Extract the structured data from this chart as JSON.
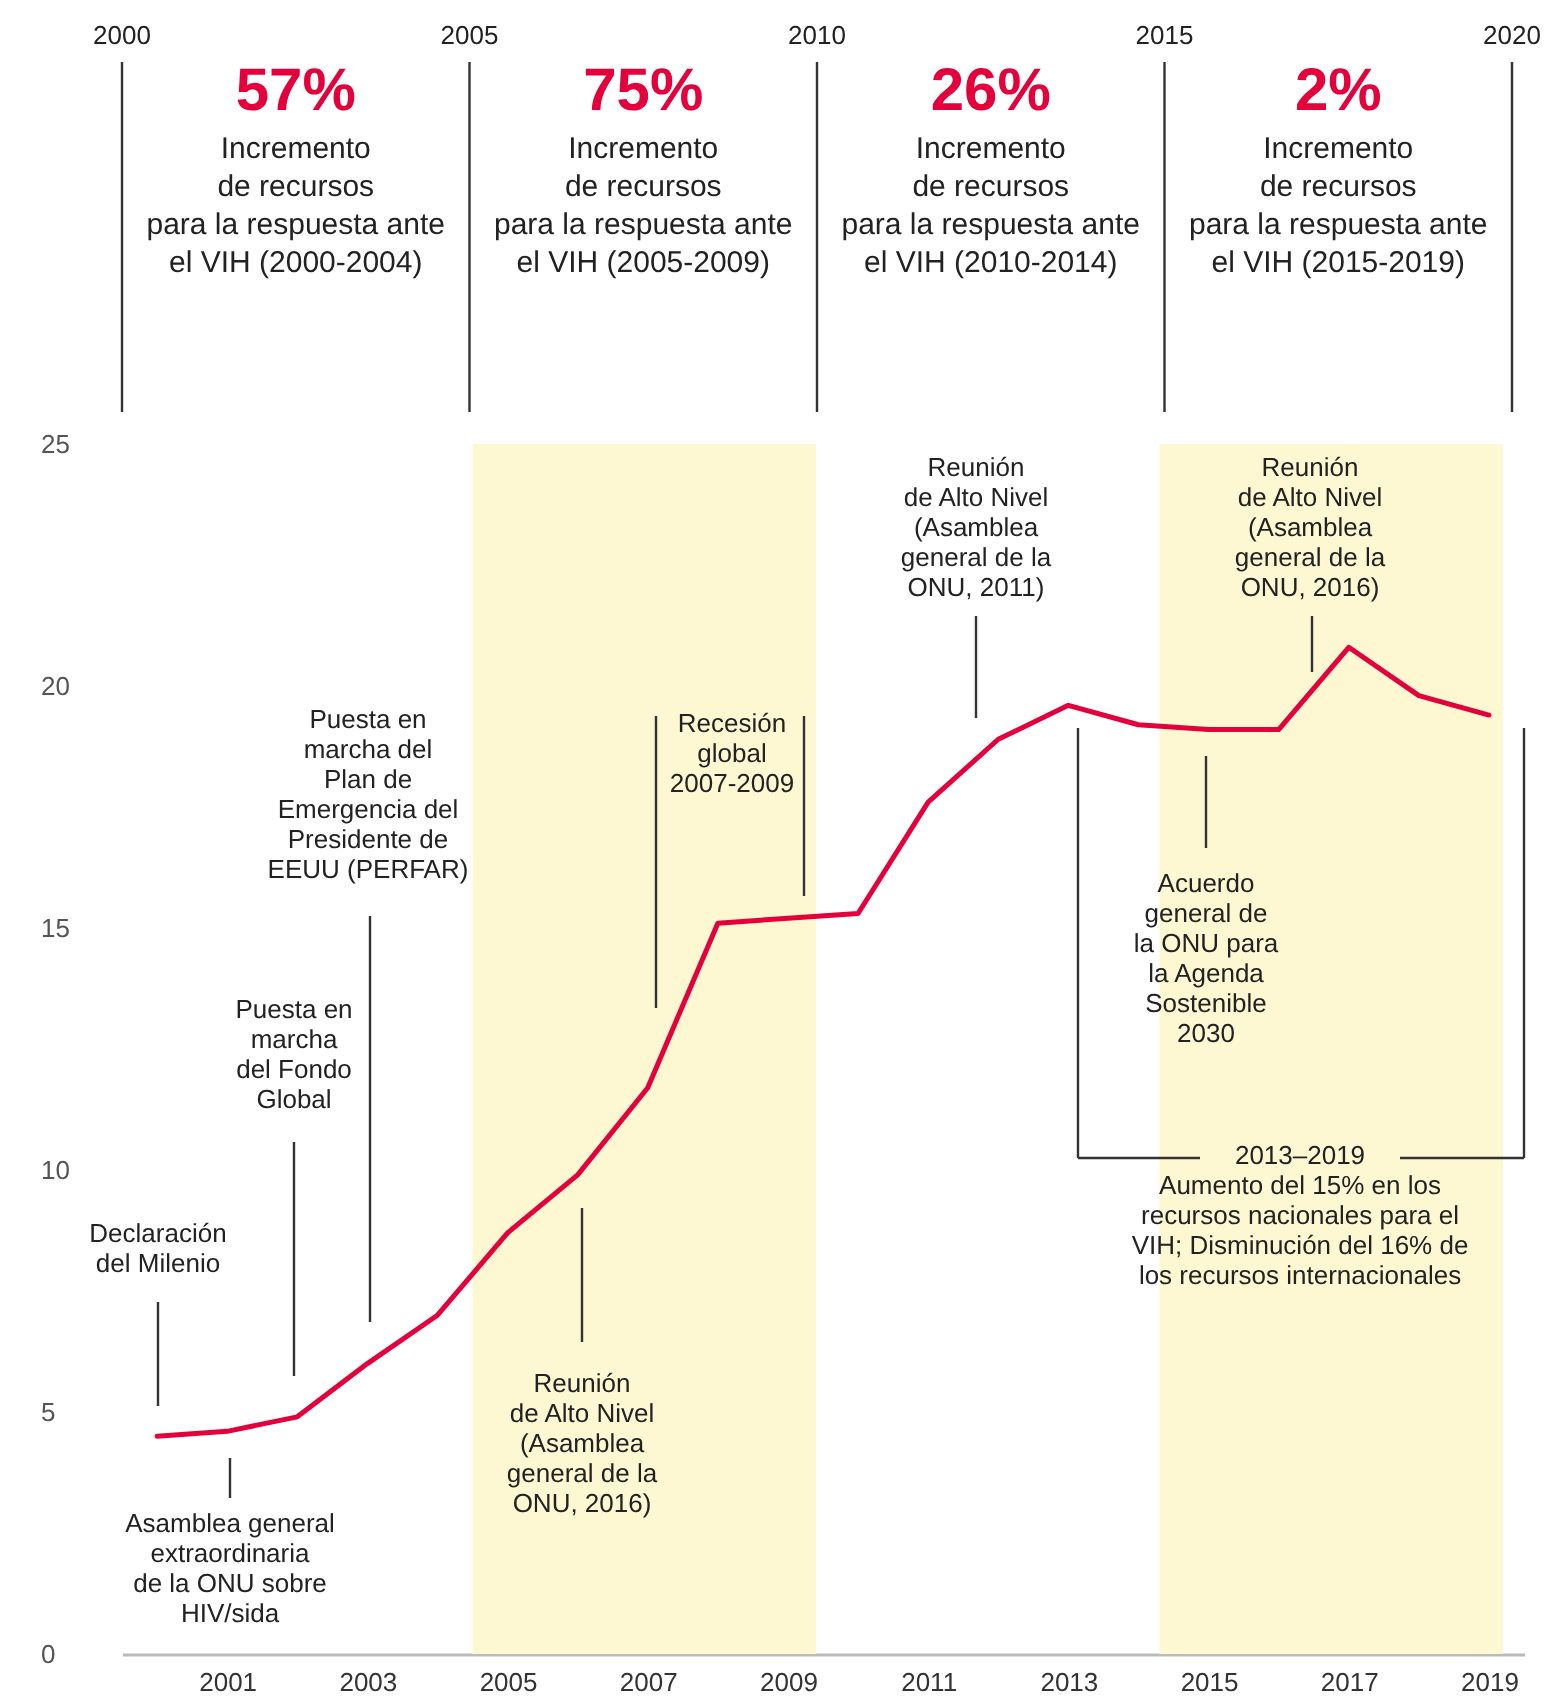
{
  "chart_data": {
    "type": "line",
    "x": [
      2000,
      2001,
      2002,
      2003,
      2004,
      2005,
      2006,
      2007,
      2008,
      2009,
      2010,
      2011,
      2012,
      2013,
      2014,
      2015,
      2016,
      2017,
      2018,
      2019
    ],
    "values": [
      4.5,
      4.6,
      4.9,
      6.0,
      7.0,
      8.7,
      9.9,
      11.7,
      15.1,
      15.2,
      15.3,
      17.6,
      18.9,
      19.6,
      19.2,
      19.1,
      19.1,
      20.8,
      19.8,
      19.4
    ],
    "color": "#e4003b",
    "marker": "none",
    "line_style": "solid",
    "grid": false,
    "xlim": [
      1999.5,
      2019.5
    ],
    "xticks": [
      2001,
      2003,
      2005,
      2007,
      2009,
      2011,
      2013,
      2015,
      2017,
      2019
    ],
    "ylim": [
      0,
      25
    ],
    "yticks": [
      0,
      5,
      10,
      15,
      20,
      25
    ],
    "bands": [
      {
        "axis": "x",
        "from": 2004.5,
        "to": 2009.4,
        "color": "#fdf7d2"
      },
      {
        "axis": "x",
        "from": 2014.3,
        "to": 2019.2,
        "color": "#fdf7d2"
      }
    ],
    "annotations": [
      "2000",
      "2005",
      "2010",
      "2015",
      "2020",
      "57%\nIncremento\nde recursos\npara la respuesta ante\nel VIH (2000-2004)",
      "75%\nIncremento\nde recursos\npara la respuesta ante\nel VIH (2005-2009)",
      "26%\nIncremento\nde recursos\npara la respuesta ante\nel VIH (2010-2014)",
      "2%\nIncremento\nde recursos\npara la respuesta ante\nel VIH (2015-2019)",
      "Declaración\ndel Milenio",
      "Asamblea general\nextraordinaria\nde la ONU sobre\nHIV/sida",
      "Puesta en\nmarcha\ndel Fondo\nGlobal",
      "Puesta en\nmarcha del\nPlan de\nEmergencia del\nPresidente de\nEEUU (PERFAR)",
      "Reunión\nde Alto Nivel\n(Asamblea\ngeneral de la\nONU, 2016)",
      "Recesión\nglobal\n2007-2009",
      "Reunión\nde Alto Nivel\n(Asamblea\ngeneral de la\nONU, 2011)",
      "Reunión\nde Alto Nivel\n(Asamblea\ngeneral de la\nONU, 2016)",
      "Acuerdo\ngeneral de\nla ONU para\nla Agenda\nSostenible\n2030",
      "2013–2019\nAumento del 15% en los\nrecursos nacionales para el\nVIH; Disminución del 16% de\nlos recursos internacionales"
    ]
  }
}
